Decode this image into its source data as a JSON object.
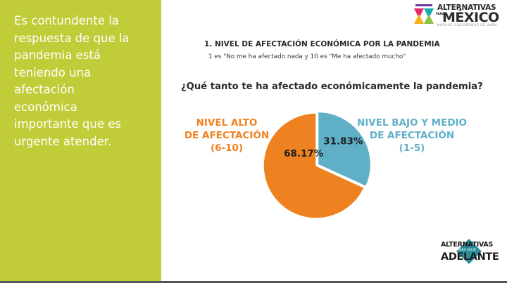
{
  "sidebar": {
    "text": "Es contundente la\nrespuesta de que la\npandemia está\nteniendo una\nafectación\neconómica\nimportante que es\nurgente atender.",
    "bg_color": "#c0cd38"
  },
  "logo_top": {
    "line1": "ALTERNATIVAS",
    "line2_small": "PARA",
    "line2": "MÉXICO",
    "line3": "NUEVOS CIUDADANOS SE UNEN"
  },
  "logo_bottom": {
    "line1": "ALTERNATIVAS",
    "line2": "PARA SALIR",
    "line3": "ADELANTE"
  },
  "chart_data": {
    "type": "pie",
    "title": "1. NIVEL DE AFECTACIÓN ECONÓMICA POR LA PANDEMIA",
    "subtitle": "1 es \"No me ha afectado nada y 10 es \"Me ha afectado mucho\"",
    "question": "¿Qué tanto te ha afectado económicamente la pandemia?",
    "slices": [
      {
        "label": "NIVEL ALTO\nDE AFECTACIÓN\n(6-10)",
        "value": 68.17,
        "value_label": "68.17%",
        "color": "#ef8220"
      },
      {
        "label": "NIVEL BAJO Y MEDIO\nDE AFECTACIÓN\n(1-5)",
        "value": 31.83,
        "value_label": "31.83%",
        "color": "#5fb0c7"
      }
    ]
  }
}
